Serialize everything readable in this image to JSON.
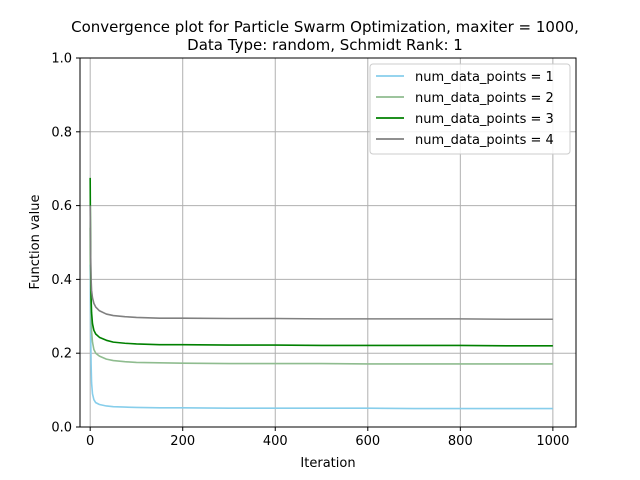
{
  "chart_data": {
    "type": "line",
    "title_line1": "Convergence plot for Particle Swarm Optimization, maxiter = 1000,",
    "title_line2": "Data Type: random, Schmidt Rank: 1",
    "xlabel": "Iteration",
    "ylabel": "Function value",
    "xlim": [
      -22,
      1050
    ],
    "ylim": [
      0.0,
      1.0
    ],
    "x_ticks": [
      0,
      200,
      400,
      600,
      800,
      1000
    ],
    "y_ticks": [
      0.0,
      0.2,
      0.4,
      0.6,
      0.8,
      1.0
    ],
    "x_tick_labels": [
      "0",
      "200",
      "400",
      "600",
      "800",
      "1000"
    ],
    "y_tick_labels": [
      "0.0",
      "0.2",
      "0.4",
      "0.6",
      "0.8",
      "1.0"
    ],
    "grid": true,
    "legend_position": "top-right",
    "x": [
      0,
      1,
      2,
      3,
      5,
      8,
      12,
      20,
      35,
      50,
      75,
      100,
      150,
      200,
      300,
      400,
      500,
      600,
      700,
      800,
      900,
      1000
    ],
    "series": [
      {
        "name": "num_data_points = 1",
        "color": "#87ceeb",
        "values": [
          0.44,
          0.26,
          0.17,
          0.12,
          0.09,
          0.074,
          0.066,
          0.061,
          0.057,
          0.055,
          0.054,
          0.053,
          0.052,
          0.052,
          0.051,
          0.051,
          0.051,
          0.051,
          0.05,
          0.05,
          0.05,
          0.05
        ]
      },
      {
        "name": "num_data_points = 2",
        "color": "#8fbc8f",
        "values": [
          0.54,
          0.38,
          0.3,
          0.26,
          0.23,
          0.21,
          0.2,
          0.192,
          0.184,
          0.18,
          0.177,
          0.175,
          0.174,
          0.173,
          0.172,
          0.172,
          0.172,
          0.171,
          0.171,
          0.171,
          0.171,
          0.171
        ]
      },
      {
        "name": "num_data_points = 3",
        "color": "#008000",
        "values": [
          0.675,
          0.45,
          0.35,
          0.31,
          0.28,
          0.262,
          0.252,
          0.243,
          0.235,
          0.23,
          0.227,
          0.225,
          0.223,
          0.223,
          0.222,
          0.222,
          0.221,
          0.221,
          0.221,
          0.221,
          0.22,
          0.22
        ]
      },
      {
        "name": "num_data_points = 4",
        "color": "#808080",
        "values": [
          0.6,
          0.47,
          0.4,
          0.37,
          0.35,
          0.335,
          0.325,
          0.315,
          0.306,
          0.302,
          0.299,
          0.297,
          0.295,
          0.295,
          0.294,
          0.294,
          0.293,
          0.293,
          0.293,
          0.293,
          0.292,
          0.292
        ]
      }
    ]
  }
}
